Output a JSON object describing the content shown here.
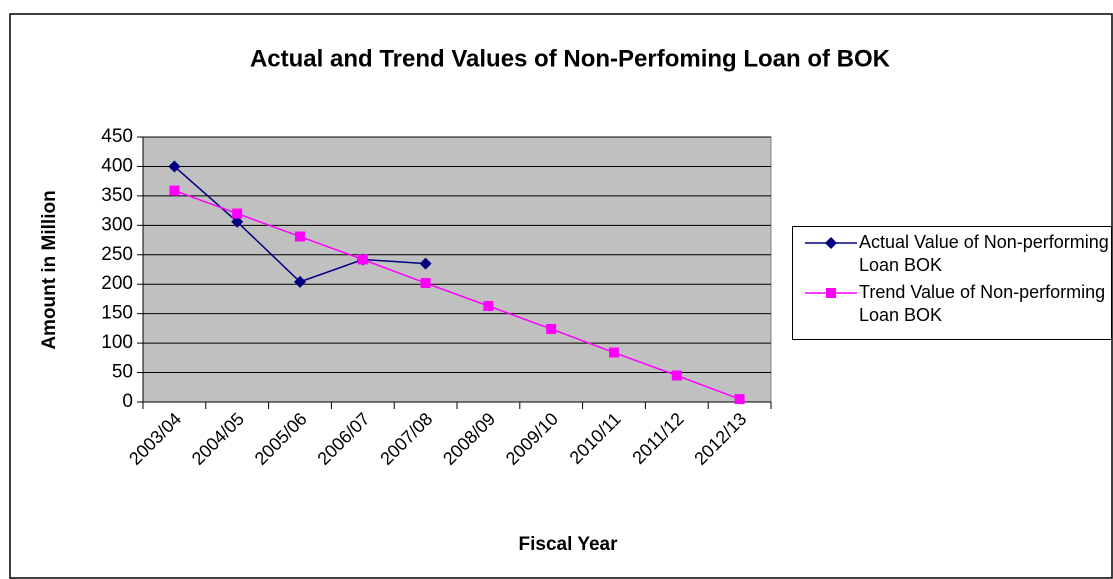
{
  "chart_data": {
    "type": "line",
    "title": "Actual and Trend Values of Non-Perfoming Loan of BOK",
    "x_label": "Fiscal Year",
    "y_label": "Amount in Million",
    "categories": [
      "2003/04",
      "2004/05",
      "2005/06",
      "2006/07",
      "2007/08",
      "2008/09",
      "2009/10",
      "2010/11",
      "2011/12",
      "2012/13"
    ],
    "series": [
      {
        "name": "Actual  Value of Non-performing Loan BOK",
        "color": "#000080",
        "marker": "diamond",
        "values": [
          400,
          306,
          204,
          242,
          235,
          null,
          null,
          null,
          null,
          null
        ]
      },
      {
        "name": "Trend Value of Non-performing Loan BOK",
        "color": "#ff00ff",
        "marker": "square",
        "values": [
          359,
          320,
          281,
          242,
          202,
          163,
          124,
          84,
          45,
          5
        ]
      }
    ],
    "ylim": [
      0,
      450
    ],
    "yticks": [
      0,
      50,
      100,
      150,
      200,
      250,
      300,
      350,
      400,
      450
    ],
    "grid": true,
    "plot_background": "#c0c0c0",
    "legend": "right"
  }
}
